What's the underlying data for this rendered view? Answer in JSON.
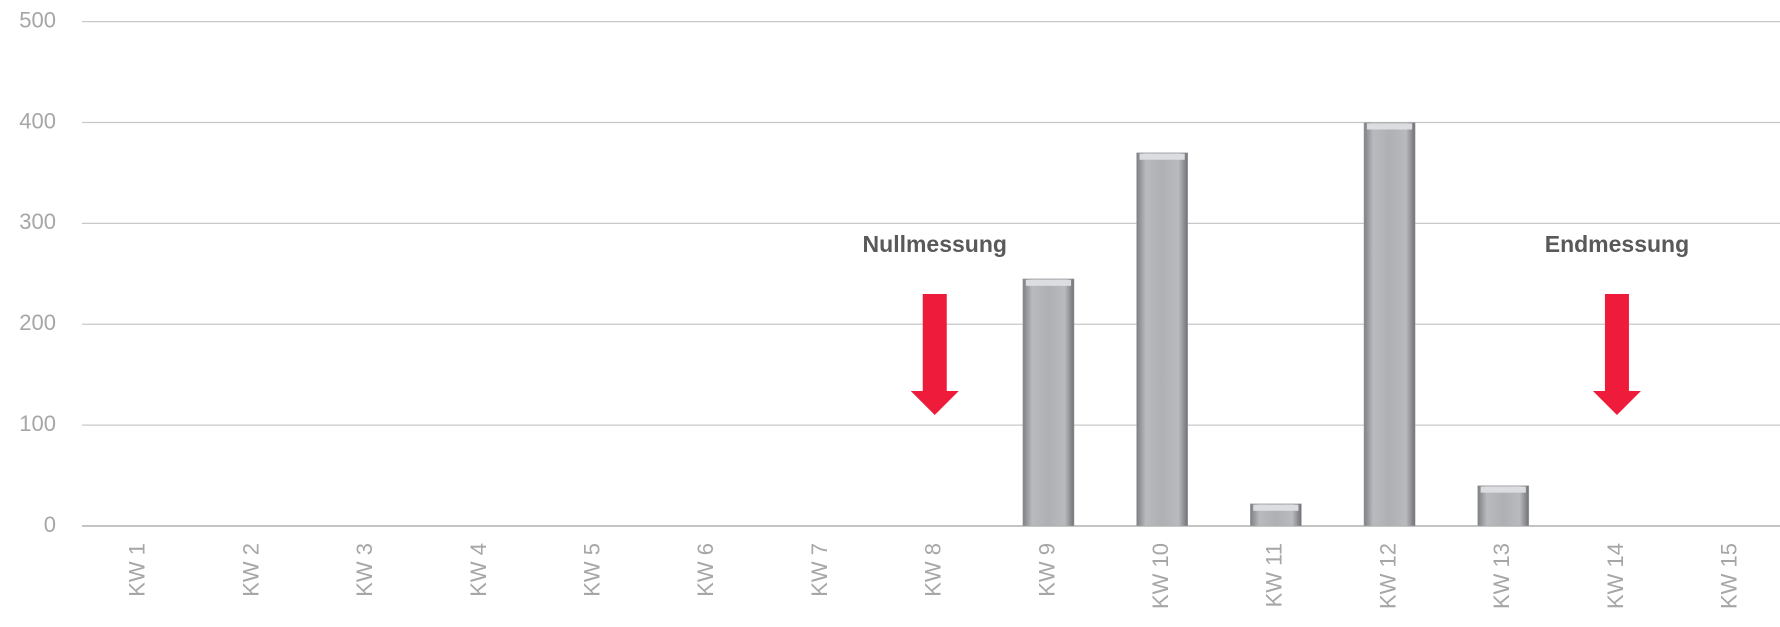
{
  "chart_data": {
    "type": "bar",
    "categories": [
      "KW 1",
      "KW 2",
      "KW 3",
      "KW 4",
      "KW 5",
      "KW 6",
      "KW 7",
      "KW 8",
      "KW 9",
      "KW 10",
      "KW 11",
      "KW 12",
      "KW 13",
      "KW 14",
      "KW 15"
    ],
    "values": [
      0,
      0,
      0,
      0,
      0,
      0,
      0,
      0,
      245,
      370,
      22,
      400,
      40,
      0,
      0
    ],
    "color": "#a9abae",
    "ylim": [
      0,
      500
    ],
    "yticks": [
      0,
      100,
      200,
      300,
      400,
      500
    ],
    "grid": true,
    "annotations": [
      {
        "text": "Nullmessung",
        "x": "KW 8",
        "color": "#ee1c3a"
      },
      {
        "text": "Endmessung",
        "x": "KW 14",
        "color": "#ee1c3a"
      }
    ]
  }
}
